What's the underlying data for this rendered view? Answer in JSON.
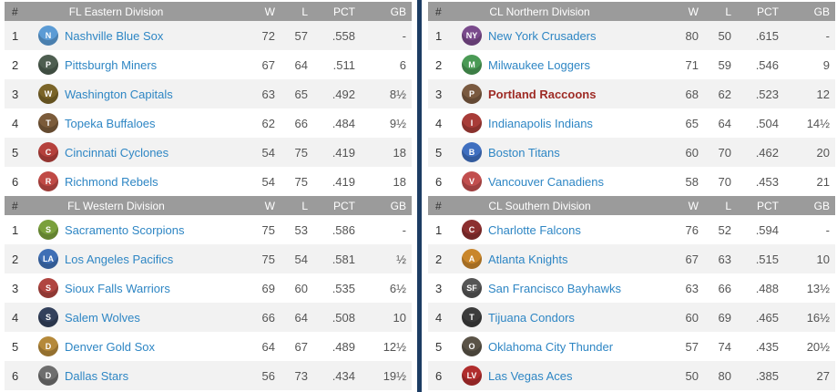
{
  "colors": {
    "header_bg": "#9b9b9b",
    "row_shade": "#f2f2f2",
    "divider": "#1c3c63",
    "team_link": "#2e86c4",
    "highlight_team": "#9e2b25"
  },
  "columns": {
    "rank": "#",
    "wins": "W",
    "losses": "L",
    "pct": "PCT",
    "gb": "GB"
  },
  "tables": [
    {
      "title": "FL Eastern Division",
      "position": "top-left",
      "teams": [
        {
          "rank": "1",
          "name": "Nashville Blue Sox",
          "w": "72",
          "l": "57",
          "pct": ".558",
          "gb": "-",
          "highlight": false,
          "logo_color": "#5b9bd5",
          "logo_initial": "N"
        },
        {
          "rank": "2",
          "name": "Pittsburgh Miners",
          "w": "67",
          "l": "64",
          "pct": ".511",
          "gb": "6",
          "highlight": false,
          "logo_color": "#4e5e50",
          "logo_initial": "P"
        },
        {
          "rank": "3",
          "name": "Washington Capitals",
          "w": "63",
          "l": "65",
          "pct": ".492",
          "gb": "8½",
          "highlight": false,
          "logo_color": "#7a6428",
          "logo_initial": "W"
        },
        {
          "rank": "4",
          "name": "Topeka Buffaloes",
          "w": "62",
          "l": "66",
          "pct": ".484",
          "gb": "9½",
          "highlight": false,
          "logo_color": "#7b5b3a",
          "logo_initial": "T"
        },
        {
          "rank": "5",
          "name": "Cincinnati Cyclones",
          "w": "54",
          "l": "75",
          "pct": ".419",
          "gb": "18",
          "highlight": false,
          "logo_color": "#b5413c",
          "logo_initial": "C"
        },
        {
          "rank": "6",
          "name": "Richmond Rebels",
          "w": "54",
          "l": "75",
          "pct": ".419",
          "gb": "18",
          "highlight": false,
          "logo_color": "#c04a45",
          "logo_initial": "R"
        }
      ]
    },
    {
      "title": "CL Northern Division",
      "position": "top-right",
      "teams": [
        {
          "rank": "1",
          "name": "New York Crusaders",
          "w": "80",
          "l": "50",
          "pct": ".615",
          "gb": "-",
          "highlight": false,
          "logo_color": "#7a4a8c",
          "logo_initial": "NY"
        },
        {
          "rank": "2",
          "name": "Milwaukee Loggers",
          "w": "71",
          "l": "59",
          "pct": ".546",
          "gb": "9",
          "highlight": false,
          "logo_color": "#4a9a55",
          "logo_initial": "M"
        },
        {
          "rank": "3",
          "name": "Portland Raccoons",
          "w": "68",
          "l": "62",
          "pct": ".523",
          "gb": "12",
          "highlight": true,
          "logo_color": "#7a5a40",
          "logo_initial": "P"
        },
        {
          "rank": "4",
          "name": "Indianapolis Indians",
          "w": "65",
          "l": "64",
          "pct": ".504",
          "gb": "14½",
          "highlight": false,
          "logo_color": "#a83c38",
          "logo_initial": "I"
        },
        {
          "rank": "5",
          "name": "Boston Titans",
          "w": "60",
          "l": "70",
          "pct": ".462",
          "gb": "20",
          "highlight": false,
          "logo_color": "#3f6fc0",
          "logo_initial": "B"
        },
        {
          "rank": "6",
          "name": "Vancouver Canadiens",
          "w": "58",
          "l": "70",
          "pct": ".453",
          "gb": "21",
          "highlight": false,
          "logo_color": "#c24e4e",
          "logo_initial": "V"
        }
      ]
    },
    {
      "title": "FL Western Division",
      "position": "bottom-left",
      "teams": [
        {
          "rank": "1",
          "name": "Sacramento Scorpions",
          "w": "75",
          "l": "53",
          "pct": ".586",
          "gb": "-",
          "highlight": false,
          "logo_color": "#7aa03c",
          "logo_initial": "S"
        },
        {
          "rank": "2",
          "name": "Los Angeles Pacifics",
          "w": "75",
          "l": "54",
          "pct": ".581",
          "gb": "½",
          "highlight": false,
          "logo_color": "#3f6fb5",
          "logo_initial": "LA"
        },
        {
          "rank": "3",
          "name": "Sioux Falls Warriors",
          "w": "69",
          "l": "60",
          "pct": ".535",
          "gb": "6½",
          "highlight": false,
          "logo_color": "#b04540",
          "logo_initial": "S"
        },
        {
          "rank": "4",
          "name": "Salem Wolves",
          "w": "66",
          "l": "64",
          "pct": ".508",
          "gb": "10",
          "highlight": false,
          "logo_color": "#33415c",
          "logo_initial": "S"
        },
        {
          "rank": "5",
          "name": "Denver Gold Sox",
          "w": "64",
          "l": "67",
          "pct": ".489",
          "gb": "12½",
          "highlight": false,
          "logo_color": "#b5893a",
          "logo_initial": "D"
        },
        {
          "rank": "6",
          "name": "Dallas Stars",
          "w": "56",
          "l": "73",
          "pct": ".434",
          "gb": "19½",
          "highlight": false,
          "logo_color": "#6e6e6e",
          "logo_initial": "D"
        }
      ]
    },
    {
      "title": "CL Southern Division",
      "position": "bottom-right",
      "teams": [
        {
          "rank": "1",
          "name": "Charlotte Falcons",
          "w": "76",
          "l": "52",
          "pct": ".594",
          "gb": "-",
          "highlight": false,
          "logo_color": "#8c2f2f",
          "logo_initial": "C"
        },
        {
          "rank": "2",
          "name": "Atlanta Knights",
          "w": "67",
          "l": "63",
          "pct": ".515",
          "gb": "10",
          "highlight": false,
          "logo_color": "#c9862b",
          "logo_initial": "A"
        },
        {
          "rank": "3",
          "name": "San Francisco Bayhawks",
          "w": "63",
          "l": "66",
          "pct": ".488",
          "gb": "13½",
          "highlight": false,
          "logo_color": "#555555",
          "logo_initial": "SF"
        },
        {
          "rank": "4",
          "name": "Tijuana Condors",
          "w": "60",
          "l": "69",
          "pct": ".465",
          "gb": "16½",
          "highlight": false,
          "logo_color": "#3c3c3c",
          "logo_initial": "T"
        },
        {
          "rank": "5",
          "name": "Oklahoma City Thunder",
          "w": "57",
          "l": "74",
          "pct": ".435",
          "gb": "20½",
          "highlight": false,
          "logo_color": "#5a5347",
          "logo_initial": "O"
        },
        {
          "rank": "6",
          "name": "Las Vegas Aces",
          "w": "50",
          "l": "80",
          "pct": ".385",
          "gb": "27",
          "highlight": false,
          "logo_color": "#b02d2d",
          "logo_initial": "LV"
        }
      ]
    }
  ]
}
